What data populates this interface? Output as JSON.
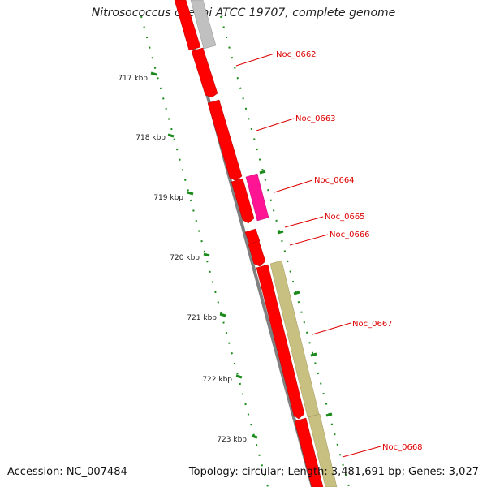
{
  "title": "Nitrosococcus oceani ATCC 19707, complete genome",
  "accession": "Accession: NC_007484",
  "summary": "Topology: circular; Length: 3,481,691 bp; Genes: 3,027",
  "colors": {
    "backbone": "#808080",
    "cds": "#ff0000",
    "cds_other": "#ff1493",
    "rna": "#c0c0c0",
    "feature": "#c8c080",
    "tick": "#1a8a1a",
    "label": "#dd0000"
  },
  "kbp_ticks": [
    "717 kbp",
    "718 kbp",
    "719 kbp",
    "720 kbp",
    "721 kbp",
    "722 kbp",
    "723 kbp"
  ],
  "gene_labels": [
    "Noc_0662",
    "Noc_0663",
    "Noc_0664",
    "Noc_0665",
    "Noc_0666",
    "Noc_0667",
    "Noc_0668"
  ]
}
